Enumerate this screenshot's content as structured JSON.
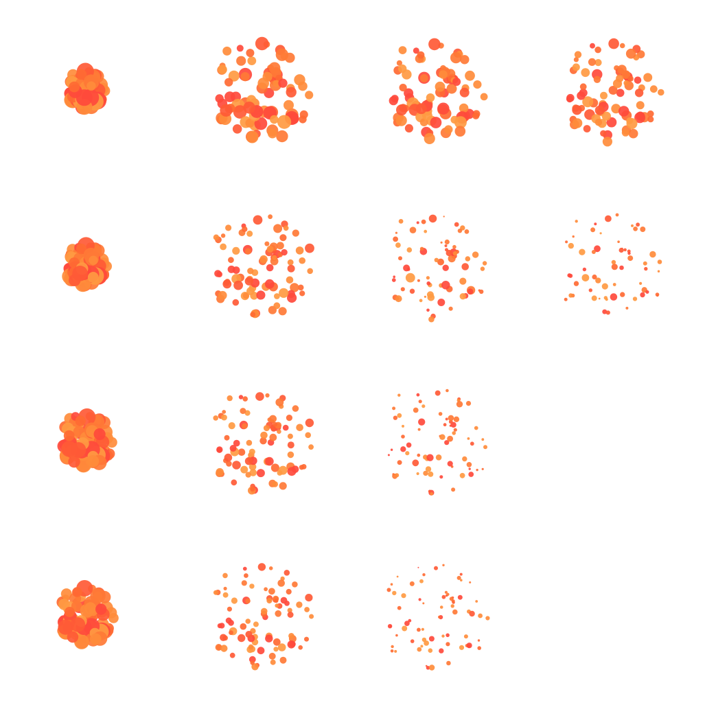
{
  "figure": {
    "rows": 4,
    "columns": 4,
    "palette": [
      "#ff8c3b",
      "#ff7a36",
      "#ff6a33",
      "#ff5a36",
      "#ff4a3c",
      "#ff9a42"
    ],
    "background": "#ffffff",
    "panels": [
      {
        "row": 1,
        "col": 1,
        "present": true,
        "dot_count": 70,
        "size_scale": 1.0,
        "spread": 0.3
      },
      {
        "row": 1,
        "col": 2,
        "present": true,
        "dot_count": 80,
        "size_scale": 0.78,
        "spread": 0.78
      },
      {
        "row": 1,
        "col": 3,
        "present": true,
        "dot_count": 80,
        "size_scale": 0.7,
        "spread": 0.78
      },
      {
        "row": 1,
        "col": 4,
        "present": true,
        "dot_count": 80,
        "size_scale": 0.62,
        "spread": 0.8
      },
      {
        "row": 2,
        "col": 1,
        "present": true,
        "dot_count": 75,
        "size_scale": 1.0,
        "spread": 0.33
      },
      {
        "row": 2,
        "col": 2,
        "present": true,
        "dot_count": 85,
        "size_scale": 0.55,
        "spread": 0.8
      },
      {
        "row": 2,
        "col": 3,
        "present": true,
        "dot_count": 70,
        "size_scale": 0.36,
        "spread": 0.85
      },
      {
        "row": 2,
        "col": 4,
        "present": true,
        "dot_count": 60,
        "size_scale": 0.32,
        "spread": 0.85
      },
      {
        "row": 3,
        "col": 1,
        "present": true,
        "dot_count": 80,
        "size_scale": 1.0,
        "spread": 0.42
      },
      {
        "row": 3,
        "col": 2,
        "present": true,
        "dot_count": 85,
        "size_scale": 0.5,
        "spread": 0.82
      },
      {
        "row": 3,
        "col": 3,
        "present": true,
        "dot_count": 70,
        "size_scale": 0.3,
        "spread": 0.87
      },
      {
        "row": 3,
        "col": 4,
        "present": false,
        "dot_count": 0,
        "size_scale": 0,
        "spread": 0
      },
      {
        "row": 4,
        "col": 1,
        "present": true,
        "dot_count": 80,
        "size_scale": 0.95,
        "spread": 0.45
      },
      {
        "row": 4,
        "col": 2,
        "present": true,
        "dot_count": 85,
        "size_scale": 0.45,
        "spread": 0.83
      },
      {
        "row": 4,
        "col": 3,
        "present": true,
        "dot_count": 70,
        "size_scale": 0.28,
        "spread": 0.88
      },
      {
        "row": 4,
        "col": 4,
        "present": false,
        "dot_count": 0,
        "size_scale": 0,
        "spread": 0
      }
    ]
  }
}
